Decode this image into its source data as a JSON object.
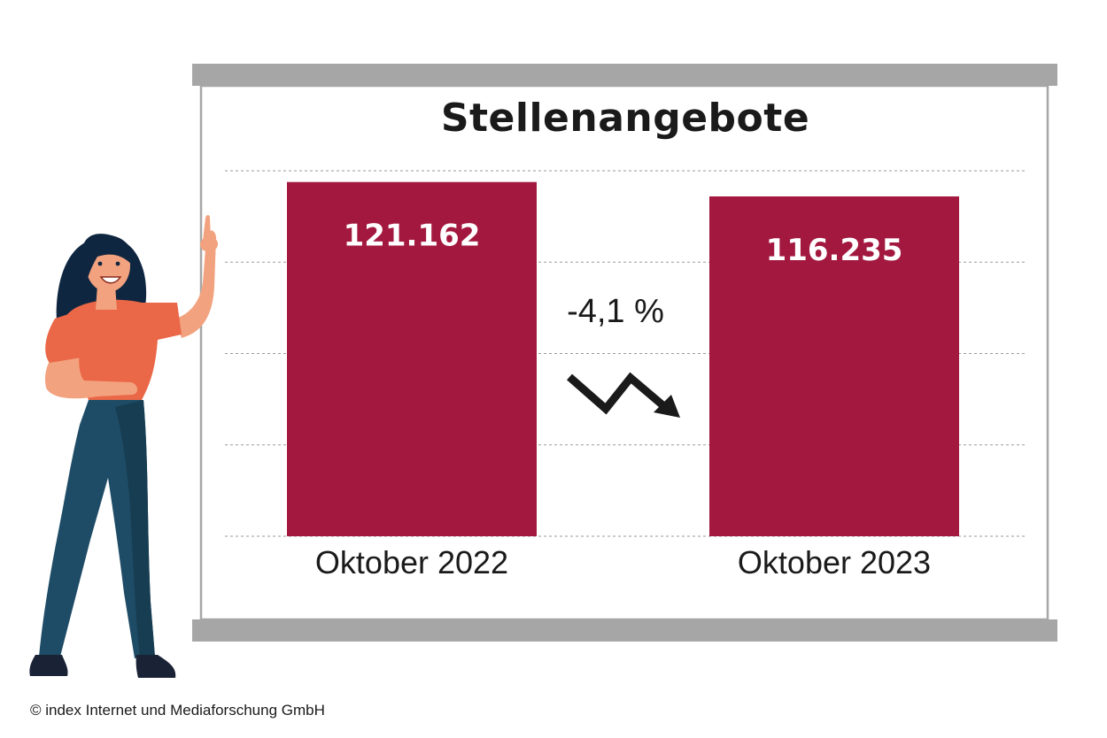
{
  "chart_data": {
    "type": "bar",
    "title": "Stellenangebote",
    "categories": [
      "Oktober 2022",
      "Oktober 2023"
    ],
    "values": [
      121162,
      116235
    ],
    "value_labels": [
      "121.162",
      "116.235"
    ],
    "ylim": [
      0,
      125000
    ],
    "grid": true,
    "bar_color": "#a3183f",
    "change_label": "-4,1 %"
  },
  "copyright": "© index Internet und Mediaforschung GmbH"
}
